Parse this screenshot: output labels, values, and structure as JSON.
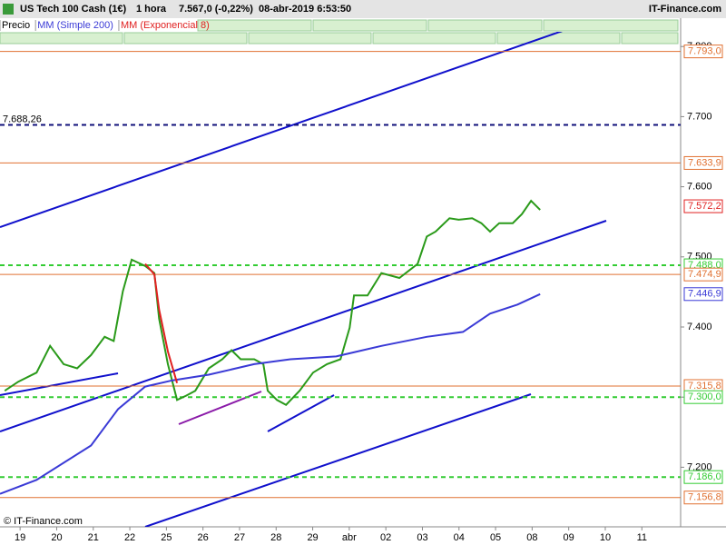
{
  "header": {
    "title": "US Tech 100 Cash (1€)",
    "period": "1 hora",
    "quote": "7.567,0 (-0,22%)",
    "datetime": "08-abr-2019 6:53:50",
    "brand": "IT-Finance.com"
  },
  "footer": "© IT-Finance.com",
  "chart_data": {
    "type": "line",
    "xlim": [
      -0.55,
      18.06
    ],
    "xticks": [
      {
        "value": 0,
        "label": "19"
      },
      {
        "value": 1,
        "label": "20"
      },
      {
        "value": 2,
        "label": "21"
      },
      {
        "value": 3,
        "label": "22"
      },
      {
        "value": 4,
        "label": "25"
      },
      {
        "value": 5,
        "label": "26"
      },
      {
        "value": 6,
        "label": "27"
      },
      {
        "value": 7,
        "label": "28"
      },
      {
        "value": 8,
        "label": "29"
      },
      {
        "value": 9,
        "label": "abr"
      },
      {
        "value": 10,
        "label": "02"
      },
      {
        "value": 11,
        "label": "03"
      },
      {
        "value": 12,
        "label": "04"
      },
      {
        "value": 13,
        "label": "05"
      },
      {
        "value": 14,
        "label": "08"
      },
      {
        "value": 15,
        "label": "09"
      },
      {
        "value": 16,
        "label": "10"
      },
      {
        "value": 17,
        "label": "11"
      }
    ],
    "ylim": [
      7115,
      7821
    ],
    "yticks": [
      {
        "value": 7200,
        "label": "7.200"
      },
      {
        "value": 7300,
        "label": "7.300"
      },
      {
        "value": 7400,
        "label": "7.400"
      },
      {
        "value": 7500,
        "label": "7.500"
      },
      {
        "value": 7600,
        "label": "7.600"
      },
      {
        "value": 7700,
        "label": "7.700"
      },
      {
        "value": 7800,
        "label": "7.800"
      }
    ],
    "series": [
      {
        "name": "Precio",
        "color": "#2a9a1a",
        "x": [
          -0.42,
          -0.05,
          0.45,
          0.82,
          1.19,
          1.56,
          1.94,
          2.31,
          2.56,
          2.81,
          3.05,
          3.42,
          3.67,
          3.8,
          4.04,
          4.29,
          4.54,
          4.79,
          5.16,
          5.53,
          5.78,
          6.03,
          6.4,
          6.65,
          6.77,
          7.02,
          7.27,
          7.64,
          8.01,
          8.39,
          8.76,
          9.01,
          9.13,
          9.5,
          9.88,
          10.37,
          10.87,
          11.12,
          11.36,
          11.74,
          11.99,
          12.36,
          12.61,
          12.85,
          13.1,
          13.47,
          13.72,
          13.97,
          14.22
        ],
        "values": [
          7309,
          7322,
          7335,
          7373,
          7347,
          7341,
          7360,
          7386,
          7380,
          7451,
          7496,
          7487,
          7477,
          7412,
          7347,
          7296,
          7302,
          7309,
          7341,
          7354,
          7367,
          7354,
          7354,
          7347,
          7309,
          7296,
          7289,
          7309,
          7335,
          7347,
          7354,
          7399,
          7445,
          7445,
          7477,
          7470,
          7490,
          7529,
          7536,
          7555,
          7553,
          7555,
          7548,
          7536,
          7548,
          7548,
          7561,
          7580,
          7567
        ]
      },
      {
        "name": "MM (Simple 200)",
        "color": "#3a3ad6",
        "x": [
          -0.55,
          0.45,
          1.94,
          2.68,
          3.42,
          4.17,
          5.16,
          6.4,
          7.39,
          8.64,
          9.88,
          11.12,
          12.11,
          12.85,
          13.6,
          14.22
        ],
        "values": [
          7162,
          7182,
          7231,
          7283,
          7315,
          7324,
          7332,
          7347,
          7354,
          7358,
          7373,
          7386,
          7393,
          7419,
          7432,
          7446.9
        ]
      },
      {
        "name": "MM (Exponencial 8)",
        "color": "#e02020",
        "x": [
          3.42,
          3.67,
          3.8,
          4.04,
          4.29
        ],
        "values": [
          7490,
          7475,
          7425,
          7365,
          7320
        ]
      }
    ],
    "levels": [
      {
        "value": 7793,
        "label": "7.793,0",
        "color": "#e07030",
        "line": "solid"
      },
      {
        "value": 7688.26,
        "label": "7.688,26",
        "color": "#10107a",
        "line": "dashed",
        "side": "left"
      },
      {
        "value": 7633.9,
        "label": "7.633,9",
        "color": "#e07030",
        "line": "solid"
      },
      {
        "value": 7572.2,
        "label": "7.572,2",
        "color": "#e02020",
        "line": "none"
      },
      {
        "value": 7488,
        "label": "7.488,0",
        "color": "#33cc33",
        "line": "dashed"
      },
      {
        "value": 7474.9,
        "label": "7.474,9",
        "color": "#e07030",
        "line": "solid"
      },
      {
        "value": 7446.9,
        "label": "7.446,9",
        "color": "#3a3ad6",
        "line": "none"
      },
      {
        "value": 7315.8,
        "label": "7.315,8",
        "color": "#e07030",
        "line": "solid"
      },
      {
        "value": 7300,
        "label": "7.300,0",
        "color": "#33cc33",
        "line": "dashed"
      },
      {
        "value": 7186,
        "label": "7.186,0",
        "color": "#33cc33",
        "line": "dashed"
      },
      {
        "value": 7156.8,
        "label": "7.156,8",
        "color": "#e07030",
        "line": "solid"
      }
    ]
  }
}
